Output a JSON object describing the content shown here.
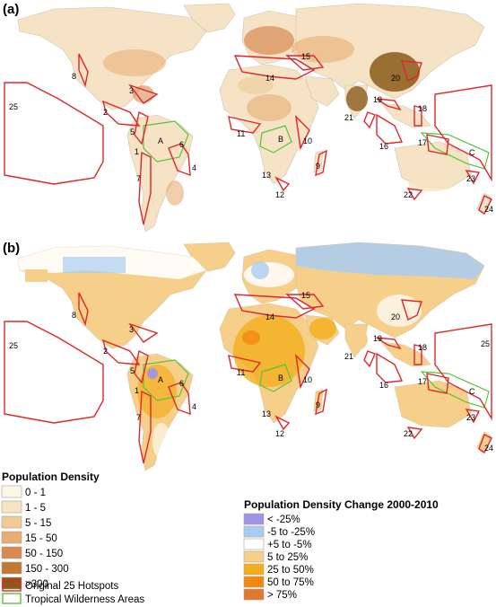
{
  "panels": [
    {
      "label": "(a)"
    },
    {
      "label": "(b)"
    }
  ],
  "hotspot_labels_a": [
    "25",
    "8",
    "3",
    "2",
    "5",
    "A",
    "6",
    "1",
    "4",
    "7",
    "15",
    "14",
    "20",
    "19",
    "21",
    "11",
    "B",
    "10",
    "9",
    "13",
    "12",
    "18",
    "16",
    "17",
    "C",
    "22",
    "23",
    "24"
  ],
  "hotspot_labels_b": [
    "25",
    "8",
    "3",
    "2",
    "5",
    "A",
    "6",
    "1",
    "4",
    "7",
    "15",
    "14",
    "20",
    "19",
    "21",
    "11",
    "B",
    "10",
    "9",
    "13",
    "12",
    "18",
    "16",
    "17",
    "C",
    "22",
    "23",
    "24",
    "25"
  ],
  "legend_density": {
    "title": "Population Density",
    "items": [
      {
        "label": "0 - 1",
        "color": "#fdf6ea"
      },
      {
        "label": "1 - 5",
        "color": "#f8e3c2"
      },
      {
        "label": "5 - 15",
        "color": "#f0c998"
      },
      {
        "label": "15 - 50",
        "color": "#e8ad73"
      },
      {
        "label": "50 - 150",
        "color": "#d98a52"
      },
      {
        "label": "150 - 300",
        "color": "#bf7a34"
      },
      {
        "label": ">300",
        "color": "#8a5a18"
      }
    ],
    "outline_items": [
      {
        "label": "Original 25 Hotspots",
        "color": "#e0262a"
      },
      {
        "label": "Tropical Wilderness Areas",
        "color": "#55c43c"
      }
    ]
  },
  "legend_change": {
    "title": "Population Density Change 2000-2010",
    "items": [
      {
        "label": "< -25%",
        "color": "#9d93e8"
      },
      {
        "label": "-5 to -25%",
        "color": "#a9cdf2"
      },
      {
        "label": "+5 to -5%",
        "color": "#ffffff"
      },
      {
        "label": "5 to 25%",
        "color": "#f6d08a"
      },
      {
        "label": "25 to 50%",
        "color": "#f2ae1c"
      },
      {
        "label": "50 to 75%",
        "color": "#ef8a10"
      },
      {
        "label": "> 75%",
        "color": "#e0782e"
      }
    ]
  }
}
